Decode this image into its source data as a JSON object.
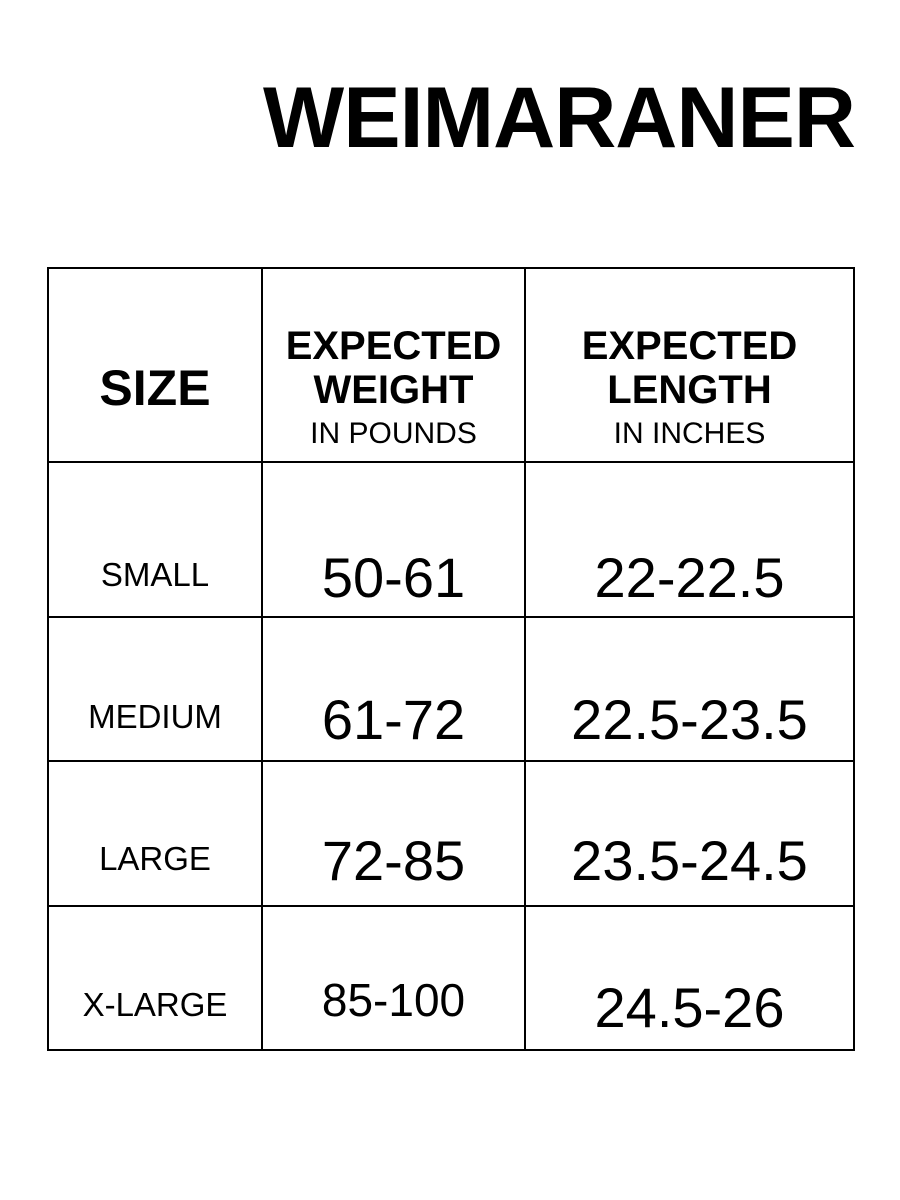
{
  "title": "WEIMARANER",
  "table": {
    "headers": [
      {
        "main": "SIZE",
        "sub": ""
      },
      {
        "main_line1": "EXPECTED",
        "main_line2": "WEIGHT",
        "sub": "IN POUNDS"
      },
      {
        "main_line1": "EXPECTED",
        "main_line2": "LENGTH",
        "sub": "IN INCHES"
      }
    ],
    "rows": [
      {
        "size": "SMALL",
        "weight": "50-61",
        "length": "22-22.5"
      },
      {
        "size": "MEDIUM",
        "weight": "61-72",
        "length": "22.5-23.5"
      },
      {
        "size": "LARGE",
        "weight": "72-85",
        "length": "23.5-24.5"
      },
      {
        "size": "X-LARGE",
        "weight": "85-100",
        "length": "24.5-26"
      }
    ]
  }
}
